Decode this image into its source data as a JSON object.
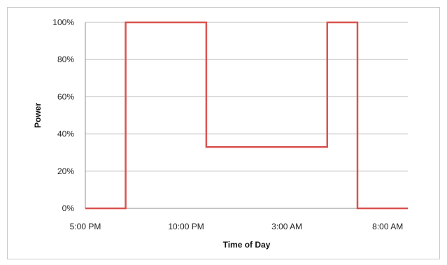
{
  "chart_data": {
    "type": "line",
    "title": "",
    "xlabel": "Time of Day",
    "ylabel": "Power",
    "x_unit": "hour-of-clock",
    "xlim": [
      17,
      33
    ],
    "ylim": [
      0,
      100
    ],
    "x_tick_values": [
      17,
      22,
      27,
      32
    ],
    "x_tick_labels": [
      "5:00 PM",
      "10:00 PM",
      "3:00 AM",
      "8:00 AM"
    ],
    "y_tick_values": [
      0,
      20,
      40,
      60,
      80,
      100
    ],
    "y_tick_labels": [
      "0%",
      "20%",
      "40%",
      "60%",
      "80%",
      "100%"
    ],
    "grid": "horizontal",
    "line_color": "#d9534f",
    "series": [
      {
        "name": "",
        "points": [
          {
            "x": 17.0,
            "y": 0
          },
          {
            "x": 19.0,
            "y": 0
          },
          {
            "x": 19.0,
            "y": 100
          },
          {
            "x": 23.0,
            "y": 100
          },
          {
            "x": 23.0,
            "y": 33
          },
          {
            "x": 29.0,
            "y": 33
          },
          {
            "x": 29.0,
            "y": 100
          },
          {
            "x": 30.5,
            "y": 100
          },
          {
            "x": 30.5,
            "y": 0
          },
          {
            "x": 33.0,
            "y": 0
          }
        ]
      }
    ]
  }
}
